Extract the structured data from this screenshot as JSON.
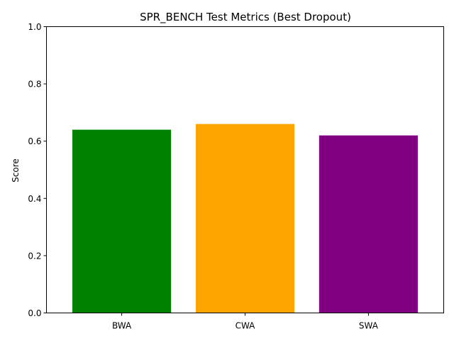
{
  "chart_data": {
    "type": "bar",
    "title": "SPR_BENCH Test Metrics (Best Dropout)",
    "xlabel": "",
    "ylabel": "Score",
    "categories": [
      "BWA",
      "CWA",
      "SWA"
    ],
    "values": [
      0.64,
      0.66,
      0.62
    ],
    "colors": [
      "#008000",
      "#ffa500",
      "#800080"
    ],
    "ylim": [
      0,
      1.0
    ],
    "yticks": [
      "0.0",
      "0.2",
      "0.4",
      "0.6",
      "0.8",
      "1.0"
    ],
    "grid": false,
    "legend": "none"
  }
}
